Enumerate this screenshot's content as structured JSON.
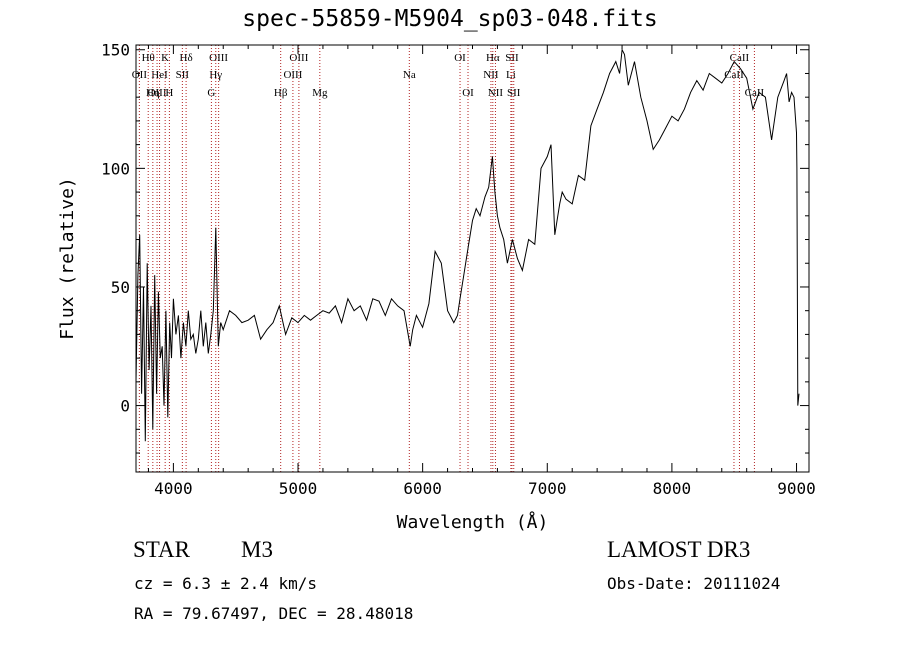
{
  "title": "spec-55859-M5904_sp03-048.fits",
  "info": {
    "object_class": "STAR",
    "subclass": "M3",
    "survey": "LAMOST DR3",
    "cz": "cz = 6.3 ± 2.4 km/s",
    "obs_date": "Obs-Date: 20111024",
    "radec": "RA =  79.67497, DEC =  28.48018"
  },
  "chart_data": {
    "type": "line",
    "title": "spec-55859-M5904_sp03-048.fits",
    "xlabel": "Wavelength (Å)",
    "ylabel": "Flux (relative)",
    "xlim": [
      3700,
      9100
    ],
    "ylim": [
      -28,
      152
    ],
    "xticks": [
      4000,
      5000,
      6000,
      7000,
      8000,
      9000
    ],
    "yticks": [
      0,
      50,
      100,
      150
    ],
    "line_color": "#000000",
    "marker_color": "#b22222",
    "series": [
      {
        "name": "flux",
        "x": [
          3700,
          3715,
          3730,
          3745,
          3760,
          3775,
          3790,
          3805,
          3820,
          3835,
          3850,
          3865,
          3880,
          3895,
          3910,
          3925,
          3940,
          3955,
          3970,
          3985,
          4000,
          4020,
          4040,
          4060,
          4080,
          4100,
          4120,
          4140,
          4160,
          4180,
          4200,
          4220,
          4240,
          4260,
          4280,
          4300,
          4320,
          4340,
          4360,
          4380,
          4400,
          4450,
          4500,
          4550,
          4600,
          4650,
          4700,
          4750,
          4800,
          4850,
          4900,
          4950,
          5000,
          5050,
          5100,
          5150,
          5200,
          5250,
          5300,
          5350,
          5400,
          5450,
          5500,
          5550,
          5600,
          5650,
          5700,
          5750,
          5800,
          5850,
          5900,
          5920,
          5950,
          6000,
          6050,
          6100,
          6150,
          6200,
          6250,
          6280,
          6300,
          6330,
          6360,
          6400,
          6430,
          6460,
          6500,
          6530,
          6560,
          6580,
          6600,
          6620,
          6650,
          6680,
          6720,
          6760,
          6800,
          6850,
          6900,
          6950,
          7000,
          7030,
          7060,
          7100,
          7120,
          7150,
          7200,
          7250,
          7300,
          7350,
          7400,
          7450,
          7500,
          7550,
          7580,
          7600,
          7620,
          7650,
          7700,
          7750,
          7800,
          7850,
          7900,
          7950,
          8000,
          8050,
          8100,
          8150,
          8200,
          8250,
          8300,
          8350,
          8400,
          8450,
          8500,
          8550,
          8600,
          8650,
          8700,
          8750,
          8800,
          8850,
          8900,
          8920,
          8940,
          8960,
          8980,
          9000,
          9003,
          9010,
          9020
        ],
        "y": [
          10,
          55,
          72,
          5,
          50,
          -15,
          60,
          15,
          42,
          -10,
          55,
          5,
          48,
          20,
          25,
          0,
          40,
          -5,
          35,
          20,
          45,
          30,
          38,
          20,
          35,
          25,
          40,
          28,
          30,
          22,
          28,
          40,
          25,
          35,
          22,
          30,
          40,
          75,
          25,
          35,
          32,
          40,
          38,
          35,
          36,
          38,
          28,
          32,
          35,
          42,
          30,
          37,
          35,
          38,
          36,
          38,
          40,
          39,
          42,
          35,
          45,
          40,
          42,
          36,
          45,
          44,
          38,
          45,
          42,
          40,
          25,
          32,
          38,
          33,
          43,
          65,
          60,
          40,
          35,
          38,
          45,
          55,
          65,
          78,
          83,
          80,
          88,
          92,
          105,
          90,
          80,
          75,
          70,
          60,
          70,
          62,
          57,
          70,
          68,
          100,
          105,
          110,
          72,
          85,
          90,
          87,
          85,
          97,
          95,
          118,
          125,
          132,
          140,
          145,
          140,
          150,
          148,
          135,
          145,
          130,
          120,
          108,
          112,
          117,
          122,
          120,
          125,
          132,
          137,
          133,
          140,
          138,
          136,
          140,
          145,
          142,
          138,
          125,
          132,
          130,
          112,
          130,
          137,
          140,
          128,
          132,
          130,
          115,
          100,
          0,
          5
        ]
      }
    ],
    "lines": [
      {
        "label": "Hθ",
        "x": 3798,
        "row": 0
      },
      {
        "label": "OII",
        "x": 3727,
        "row": 1
      },
      {
        "label": "OIII",
        "x": 3869,
        "row": 2
      },
      {
        "label": "K",
        "x": 3934,
        "row": 0
      },
      {
        "label": "HeI",
        "x": 3889,
        "row": 1
      },
      {
        "label": "Hη",
        "x": 3835,
        "row": 2
      },
      {
        "label": "Hδ",
        "x": 4102,
        "row": 0
      },
      {
        "label": "SII",
        "x": 4072,
        "row": 1
      },
      {
        "label": "H",
        "x": 3968,
        "row": 2
      },
      {
        "label": "OIII",
        "x": 4363,
        "row": 0
      },
      {
        "label": "Hγ",
        "x": 4340,
        "row": 1
      },
      {
        "label": "G",
        "x": 4305,
        "row": 2
      },
      {
        "label": "OIII",
        "x": 5007,
        "row": 0
      },
      {
        "label": "OIII",
        "x": 4959,
        "row": 1
      },
      {
        "label": "Hβ",
        "x": 4861,
        "row": 2
      },
      {
        "label": "Mg",
        "x": 5175,
        "row": 2
      },
      {
        "label": "Na",
        "x": 5893,
        "row": 1
      },
      {
        "label": "OI",
        "x": 6300,
        "row": 0
      },
      {
        "label": "OI",
        "x": 6364,
        "row": 2
      },
      {
        "label": "Hα",
        "x": 6563,
        "row": 0
      },
      {
        "label": "NII",
        "x": 6548,
        "row": 1
      },
      {
        "label": "NII",
        "x": 6584,
        "row": 2
      },
      {
        "label": "SII",
        "x": 6717,
        "row": 0
      },
      {
        "label": "Li",
        "x": 6708,
        "row": 1
      },
      {
        "label": "SII",
        "x": 6731,
        "row": 2
      },
      {
        "label": "CaII",
        "x": 8542,
        "row": 0
      },
      {
        "label": "CaII",
        "x": 8498,
        "row": 1
      },
      {
        "label": "CaII",
        "x": 8662,
        "row": 2
      }
    ]
  }
}
